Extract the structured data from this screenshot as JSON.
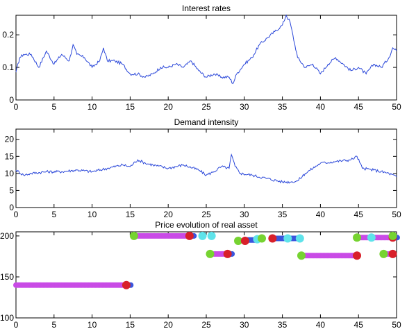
{
  "colors": {
    "line": "#2a47d9",
    "axes": "#000000",
    "magenta": "#c94be6",
    "blue": "#3a55dd",
    "red": "#d8202a",
    "green": "#76d331",
    "cyan": "#5fe3ea"
  },
  "chart_data": [
    {
      "type": "line",
      "title": "Interest rates",
      "xlim": [
        0,
        50
      ],
      "ylim": [
        0,
        0.26
      ],
      "xticks": [
        "0",
        "5",
        "10",
        "15",
        "20",
        "25",
        "30",
        "35",
        "40",
        "45",
        "50"
      ],
      "yticks": [
        "0",
        "0.1",
        "0.2"
      ],
      "grid": false,
      "series": [
        {
          "x": [
            0,
            0.5,
            1,
            2,
            3,
            4,
            5,
            6,
            7,
            7.5,
            8,
            9,
            10,
            11,
            11.5,
            12,
            13,
            14,
            15,
            16,
            17,
            18,
            19,
            20,
            21,
            22,
            23,
            24,
            25,
            26,
            27,
            28,
            28.5,
            29,
            30,
            31,
            32,
            33,
            34,
            35,
            35.5,
            36,
            37,
            38,
            39,
            40,
            41,
            42,
            43,
            44,
            45,
            46,
            47,
            48,
            49,
            49.5,
            50
          ],
          "y": [
            0.085,
            0.13,
            0.14,
            0.14,
            0.1,
            0.15,
            0.11,
            0.14,
            0.12,
            0.17,
            0.14,
            0.13,
            0.1,
            0.12,
            0.16,
            0.12,
            0.12,
            0.11,
            0.08,
            0.08,
            0.07,
            0.08,
            0.1,
            0.1,
            0.11,
            0.1,
            0.12,
            0.09,
            0.07,
            0.08,
            0.07,
            0.07,
            0.05,
            0.08,
            0.11,
            0.13,
            0.17,
            0.19,
            0.21,
            0.23,
            0.26,
            0.24,
            0.13,
            0.1,
            0.11,
            0.08,
            0.11,
            0.13,
            0.11,
            0.09,
            0.1,
            0.08,
            0.11,
            0.1,
            0.13,
            0.16,
            0.15
          ]
        }
      ]
    },
    {
      "type": "line",
      "title": "Demand intensity",
      "xlim": [
        0,
        50
      ],
      "ylim": [
        0,
        23
      ],
      "xticks": [
        "0",
        "5",
        "10",
        "15",
        "20",
        "25",
        "30",
        "35",
        "40",
        "45",
        "50"
      ],
      "yticks": [
        "0",
        "5",
        "10",
        "15",
        "20"
      ],
      "grid": false,
      "series": [
        {
          "x": [
            0,
            1,
            2,
            4,
            6,
            8,
            10,
            12,
            14,
            15,
            16,
            17,
            18,
            20,
            22,
            24,
            25,
            26,
            27,
            28,
            28.3,
            28.8,
            29.5,
            31,
            33,
            35,
            36,
            37,
            38,
            40,
            42,
            44,
            44.8,
            45.5,
            47,
            49,
            50
          ],
          "y": [
            11,
            9.5,
            10,
            10.5,
            10.5,
            11,
            10.5,
            11.5,
            12.5,
            12,
            14,
            13,
            12.5,
            11.5,
            12.5,
            11,
            9.5,
            10.5,
            12,
            11.5,
            15.5,
            12,
            10,
            9.5,
            8.5,
            7.5,
            7.5,
            7.8,
            10,
            13,
            13.5,
            14,
            15,
            11.5,
            11,
            10,
            9
          ]
        }
      ]
    },
    {
      "type": "scatter",
      "title": "Price evolution of real asset",
      "xlim": [
        0,
        50
      ],
      "ylim": [
        100,
        205
      ],
      "xticks": [
        "0",
        "5",
        "10",
        "15",
        "20",
        "25",
        "30",
        "35",
        "40",
        "45",
        "50"
      ],
      "yticks": [
        "100",
        "150",
        "200"
      ],
      "grid": false,
      "segments": [
        {
          "x0": 0,
          "x1": 14.5,
          "y": 140,
          "tail": "blue",
          "end_marker": "red"
        },
        {
          "x0": 15.5,
          "x1": 22.8,
          "y": 200,
          "start_marker": "green",
          "tail": "blue",
          "end_marker": "red"
        },
        {
          "x0": 25.5,
          "x1": 27.8,
          "y": 178,
          "start_marker": "green",
          "tail": "blue",
          "end_marker": "red"
        },
        {
          "x0": 37.5,
          "x1": 44.8,
          "y": 176,
          "start_marker": "green",
          "end_marker": "red"
        },
        {
          "x0": 44.8,
          "x1": 49.5,
          "y": 198,
          "start_marker": "green",
          "tail": "blue",
          "end_marker": "red"
        },
        {
          "x0": 48.3,
          "x1": 49.5,
          "y": 178,
          "start_marker": "green",
          "end_marker": "red"
        }
      ],
      "points": [
        {
          "x": 24.5,
          "y": 200,
          "color": "cyan"
        },
        {
          "x": 25.7,
          "y": 200,
          "color": "cyan"
        },
        {
          "x": 29.2,
          "y": 194,
          "color": "green"
        },
        {
          "x": 30.1,
          "y": 194,
          "color": "red"
        },
        {
          "x": 31.7,
          "y": 196,
          "color": "cyan"
        },
        {
          "x": 32.3,
          "y": 197,
          "color": "green"
        },
        {
          "x": 33.7,
          "y": 197,
          "color": "red"
        },
        {
          "x": 35.7,
          "y": 197,
          "color": "cyan"
        },
        {
          "x": 37.3,
          "y": 197,
          "color": "cyan"
        },
        {
          "x": 46.7,
          "y": 198,
          "color": "cyan"
        },
        {
          "x": 49.5,
          "y": 200,
          "color": "green"
        }
      ],
      "blue_runs": [
        {
          "x0": 30.1,
          "x1": 31.7,
          "y": 195
        },
        {
          "x0": 33.7,
          "x1": 37.3,
          "y": 197
        }
      ]
    }
  ]
}
